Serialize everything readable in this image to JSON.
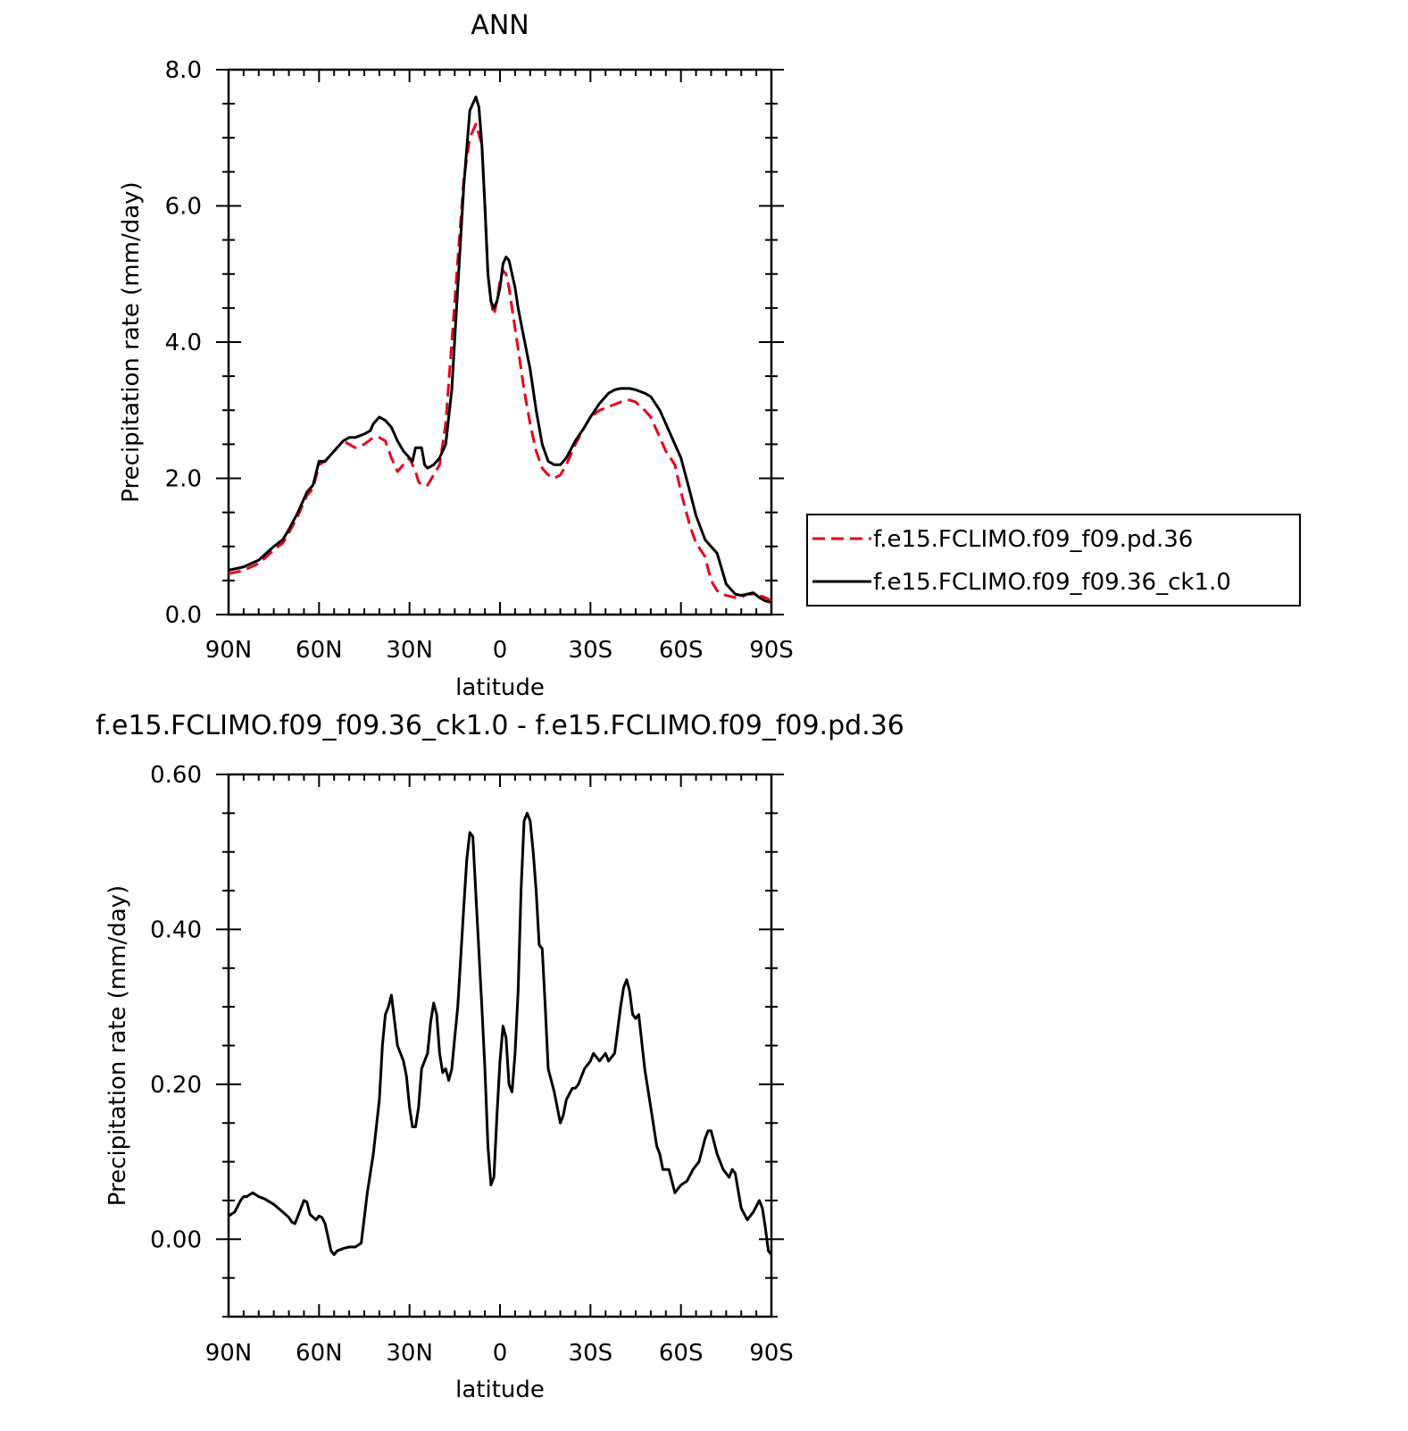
{
  "chart_data": [
    {
      "type": "line",
      "title": "ANN",
      "xlabel": "latitude",
      "ylabel": "Precipitation rate (mm/day)",
      "xlim": [
        90,
        -90
      ],
      "ylim": [
        0,
        8
      ],
      "yticks": [
        "0.0",
        "2.0",
        "4.0",
        "6.0",
        "8.0"
      ],
      "xticks": [
        {
          "v": 90,
          "label": "90N"
        },
        {
          "v": 60,
          "label": "60N"
        },
        {
          "v": 30,
          "label": "30N"
        },
        {
          "v": 0,
          "label": "0"
        },
        {
          "v": -30,
          "label": "30S"
        },
        {
          "v": -60,
          "label": "60S"
        },
        {
          "v": -90,
          "label": "90S"
        }
      ],
      "legend": "right",
      "series": [
        {
          "name": "f.e15.FCLIMO.f09_f09.pd.36",
          "color": "#e8001c",
          "dash": "dashed",
          "x": [
            90,
            85,
            80,
            75,
            72,
            70,
            67,
            64,
            62,
            60,
            58,
            55,
            52,
            50,
            48,
            45,
            42,
            40,
            38,
            36,
            34,
            32,
            30,
            29,
            28,
            27,
            26,
            25,
            24,
            22,
            20,
            18,
            16,
            14,
            12,
            10,
            8,
            6,
            5,
            4,
            3,
            2,
            1,
            0,
            -1,
            -2,
            -3,
            -4,
            -5,
            -6,
            -8,
            -10,
            -12,
            -14,
            -16,
            -18,
            -20,
            -22,
            -25,
            -28,
            -30,
            -33,
            -36,
            -40,
            -43,
            -45,
            -48,
            -50,
            -53,
            -55,
            -58,
            -60,
            -63,
            -65,
            -68,
            -70,
            -72,
            -75,
            -78,
            -80,
            -82,
            -84,
            -86,
            -88,
            -90
          ],
          "y": [
            0.6,
            0.65,
            0.75,
            0.95,
            1.05,
            1.2,
            1.45,
            1.75,
            1.85,
            2.2,
            2.25,
            2.4,
            2.55,
            2.5,
            2.45,
            2.5,
            2.6,
            2.6,
            2.55,
            2.3,
            2.1,
            2.2,
            2.3,
            2.2,
            2.1,
            1.95,
            1.9,
            1.9,
            1.9,
            2.05,
            2.2,
            2.8,
            4.0,
            5.2,
            6.4,
            7.0,
            7.2,
            6.9,
            6.0,
            5.0,
            4.6,
            4.4,
            4.6,
            4.9,
            5.05,
            5.0,
            4.8,
            4.5,
            4.2,
            3.9,
            3.3,
            2.8,
            2.4,
            2.15,
            2.05,
            2.0,
            2.05,
            2.2,
            2.5,
            2.75,
            2.9,
            3.0,
            3.05,
            3.12,
            3.15,
            3.12,
            3.0,
            2.9,
            2.6,
            2.4,
            2.2,
            1.8,
            1.3,
            1.05,
            0.85,
            0.5,
            0.35,
            0.28,
            0.25,
            0.25,
            0.3,
            0.3,
            0.28,
            0.25,
            0.2
          ]
        },
        {
          "name": "f.e15.FCLIMO.f09_f09.36_ck1.0",
          "color": "#000000",
          "dash": "solid",
          "x": [
            90,
            85,
            80,
            75,
            72,
            70,
            67,
            64,
            62,
            60,
            58,
            55,
            52,
            50,
            48,
            45,
            43,
            42,
            40,
            38,
            36,
            34,
            32,
            30,
            29,
            28,
            27,
            26,
            25,
            24,
            22,
            20,
            18,
            16,
            14,
            12,
            10,
            8,
            7,
            6,
            5,
            4,
            3,
            2,
            1,
            0,
            -1,
            -2,
            -3,
            -4,
            -5,
            -6,
            -8,
            -10,
            -12,
            -14,
            -16,
            -18,
            -20,
            -22,
            -25,
            -28,
            -30,
            -33,
            -36,
            -38,
            -40,
            -43,
            -45,
            -48,
            -50,
            -53,
            -55,
            -58,
            -60,
            -63,
            -65,
            -68,
            -70,
            -72,
            -75,
            -78,
            -80,
            -82,
            -84,
            -86,
            -88,
            -90
          ],
          "y": [
            0.65,
            0.7,
            0.8,
            1.0,
            1.1,
            1.25,
            1.5,
            1.8,
            1.9,
            2.25,
            2.25,
            2.4,
            2.55,
            2.6,
            2.6,
            2.65,
            2.7,
            2.8,
            2.9,
            2.85,
            2.75,
            2.55,
            2.4,
            2.3,
            2.25,
            2.45,
            2.45,
            2.45,
            2.2,
            2.15,
            2.2,
            2.3,
            2.5,
            3.3,
            4.8,
            6.3,
            7.4,
            7.6,
            7.45,
            6.9,
            6.0,
            5.0,
            4.6,
            4.5,
            4.6,
            4.8,
            5.15,
            5.25,
            5.2,
            5.0,
            4.8,
            4.5,
            4.05,
            3.6,
            3.0,
            2.5,
            2.25,
            2.2,
            2.2,
            2.3,
            2.55,
            2.75,
            2.9,
            3.1,
            3.25,
            3.3,
            3.32,
            3.32,
            3.3,
            3.25,
            3.2,
            3.0,
            2.8,
            2.5,
            2.3,
            1.8,
            1.45,
            1.1,
            1.0,
            0.9,
            0.45,
            0.3,
            0.28,
            0.3,
            0.32,
            0.25,
            0.2,
            0.18
          ]
        }
      ]
    },
    {
      "type": "line",
      "title": "f.e15.FCLIMO.f09_f09.36_ck1.0 - f.e15.FCLIMO.f09_f09.pd.36",
      "xlabel": "latitude",
      "ylabel": "Precipitation rate (mm/day)",
      "xlim": [
        90,
        -90
      ],
      "ylim": [
        -0.1,
        0.6
      ],
      "yticks": [
        "0.00",
        "0.20",
        "0.40",
        "0.60"
      ],
      "xticks": [
        {
          "v": 90,
          "label": "90N"
        },
        {
          "v": 60,
          "label": "60N"
        },
        {
          "v": 30,
          "label": "30N"
        },
        {
          "v": 0,
          "label": "0"
        },
        {
          "v": -30,
          "label": "30S"
        },
        {
          "v": -60,
          "label": "60S"
        },
        {
          "v": -90,
          "label": "90S"
        }
      ],
      "series": [
        {
          "name": "",
          "color": "#000000",
          "dash": "solid",
          "x": [
            90,
            88,
            86,
            85,
            84,
            82,
            80,
            78,
            75,
            72,
            70,
            69,
            68,
            67,
            65,
            64,
            63,
            61,
            60,
            59,
            58,
            56,
            55,
            54,
            52,
            50,
            48,
            46,
            44,
            42,
            40,
            39,
            38,
            37,
            36,
            34,
            32,
            31,
            30,
            29,
            28,
            27,
            26,
            24,
            23,
            22,
            21,
            20,
            19,
            18,
            17,
            16,
            15,
            14,
            12,
            11,
            10,
            9,
            8,
            6,
            5,
            4,
            3,
            2,
            1,
            0,
            -1,
            -2,
            -3,
            -4,
            -5,
            -6,
            -7,
            -8,
            -9,
            -10,
            -11,
            -12,
            -13,
            -14,
            -15,
            -16,
            -18,
            -20,
            -21,
            -22,
            -24,
            -25,
            -26,
            -28,
            -30,
            -31,
            -32,
            -33,
            -34,
            -35,
            -36,
            -38,
            -40,
            -41,
            -42,
            -43,
            -44,
            -45,
            -46,
            -48,
            -50,
            -52,
            -53,
            -54,
            -56,
            -58,
            -60,
            -62,
            -64,
            -66,
            -68,
            -69,
            -70,
            -72,
            -74,
            -75,
            -76,
            -77,
            -78,
            -80,
            -82,
            -84,
            -86,
            -87,
            -88,
            -89,
            -90
          ],
          "y": [
            0.03,
            0.035,
            0.05,
            0.055,
            0.055,
            0.06,
            0.055,
            0.052,
            0.045,
            0.035,
            0.028,
            0.022,
            0.02,
            0.03,
            0.05,
            0.048,
            0.032,
            0.025,
            0.03,
            0.028,
            0.02,
            -0.015,
            -0.02,
            -0.015,
            -0.012,
            -0.01,
            -0.01,
            -0.005,
            0.06,
            0.11,
            0.18,
            0.25,
            0.29,
            0.3,
            0.315,
            0.25,
            0.23,
            0.21,
            0.17,
            0.145,
            0.145,
            0.17,
            0.22,
            0.24,
            0.28,
            0.305,
            0.29,
            0.24,
            0.215,
            0.22,
            0.205,
            0.22,
            0.26,
            0.3,
            0.43,
            0.49,
            0.525,
            0.52,
            0.445,
            0.3,
            0.22,
            0.12,
            0.07,
            0.08,
            0.16,
            0.23,
            0.275,
            0.26,
            0.2,
            0.19,
            0.24,
            0.32,
            0.45,
            0.54,
            0.55,
            0.54,
            0.5,
            0.45,
            0.38,
            0.375,
            0.3,
            0.22,
            0.19,
            0.15,
            0.16,
            0.18,
            0.195,
            0.195,
            0.2,
            0.22,
            0.23,
            0.24,
            0.235,
            0.23,
            0.235,
            0.24,
            0.23,
            0.24,
            0.3,
            0.325,
            0.335,
            0.32,
            0.29,
            0.285,
            0.29,
            0.22,
            0.17,
            0.12,
            0.11,
            0.09,
            0.09,
            0.06,
            0.07,
            0.075,
            0.09,
            0.1,
            0.13,
            0.14,
            0.14,
            0.11,
            0.09,
            0.085,
            0.08,
            0.09,
            0.085,
            0.04,
            0.025,
            0.035,
            0.05,
            0.04,
            0.015,
            -0.015,
            -0.02
          ]
        }
      ]
    }
  ]
}
